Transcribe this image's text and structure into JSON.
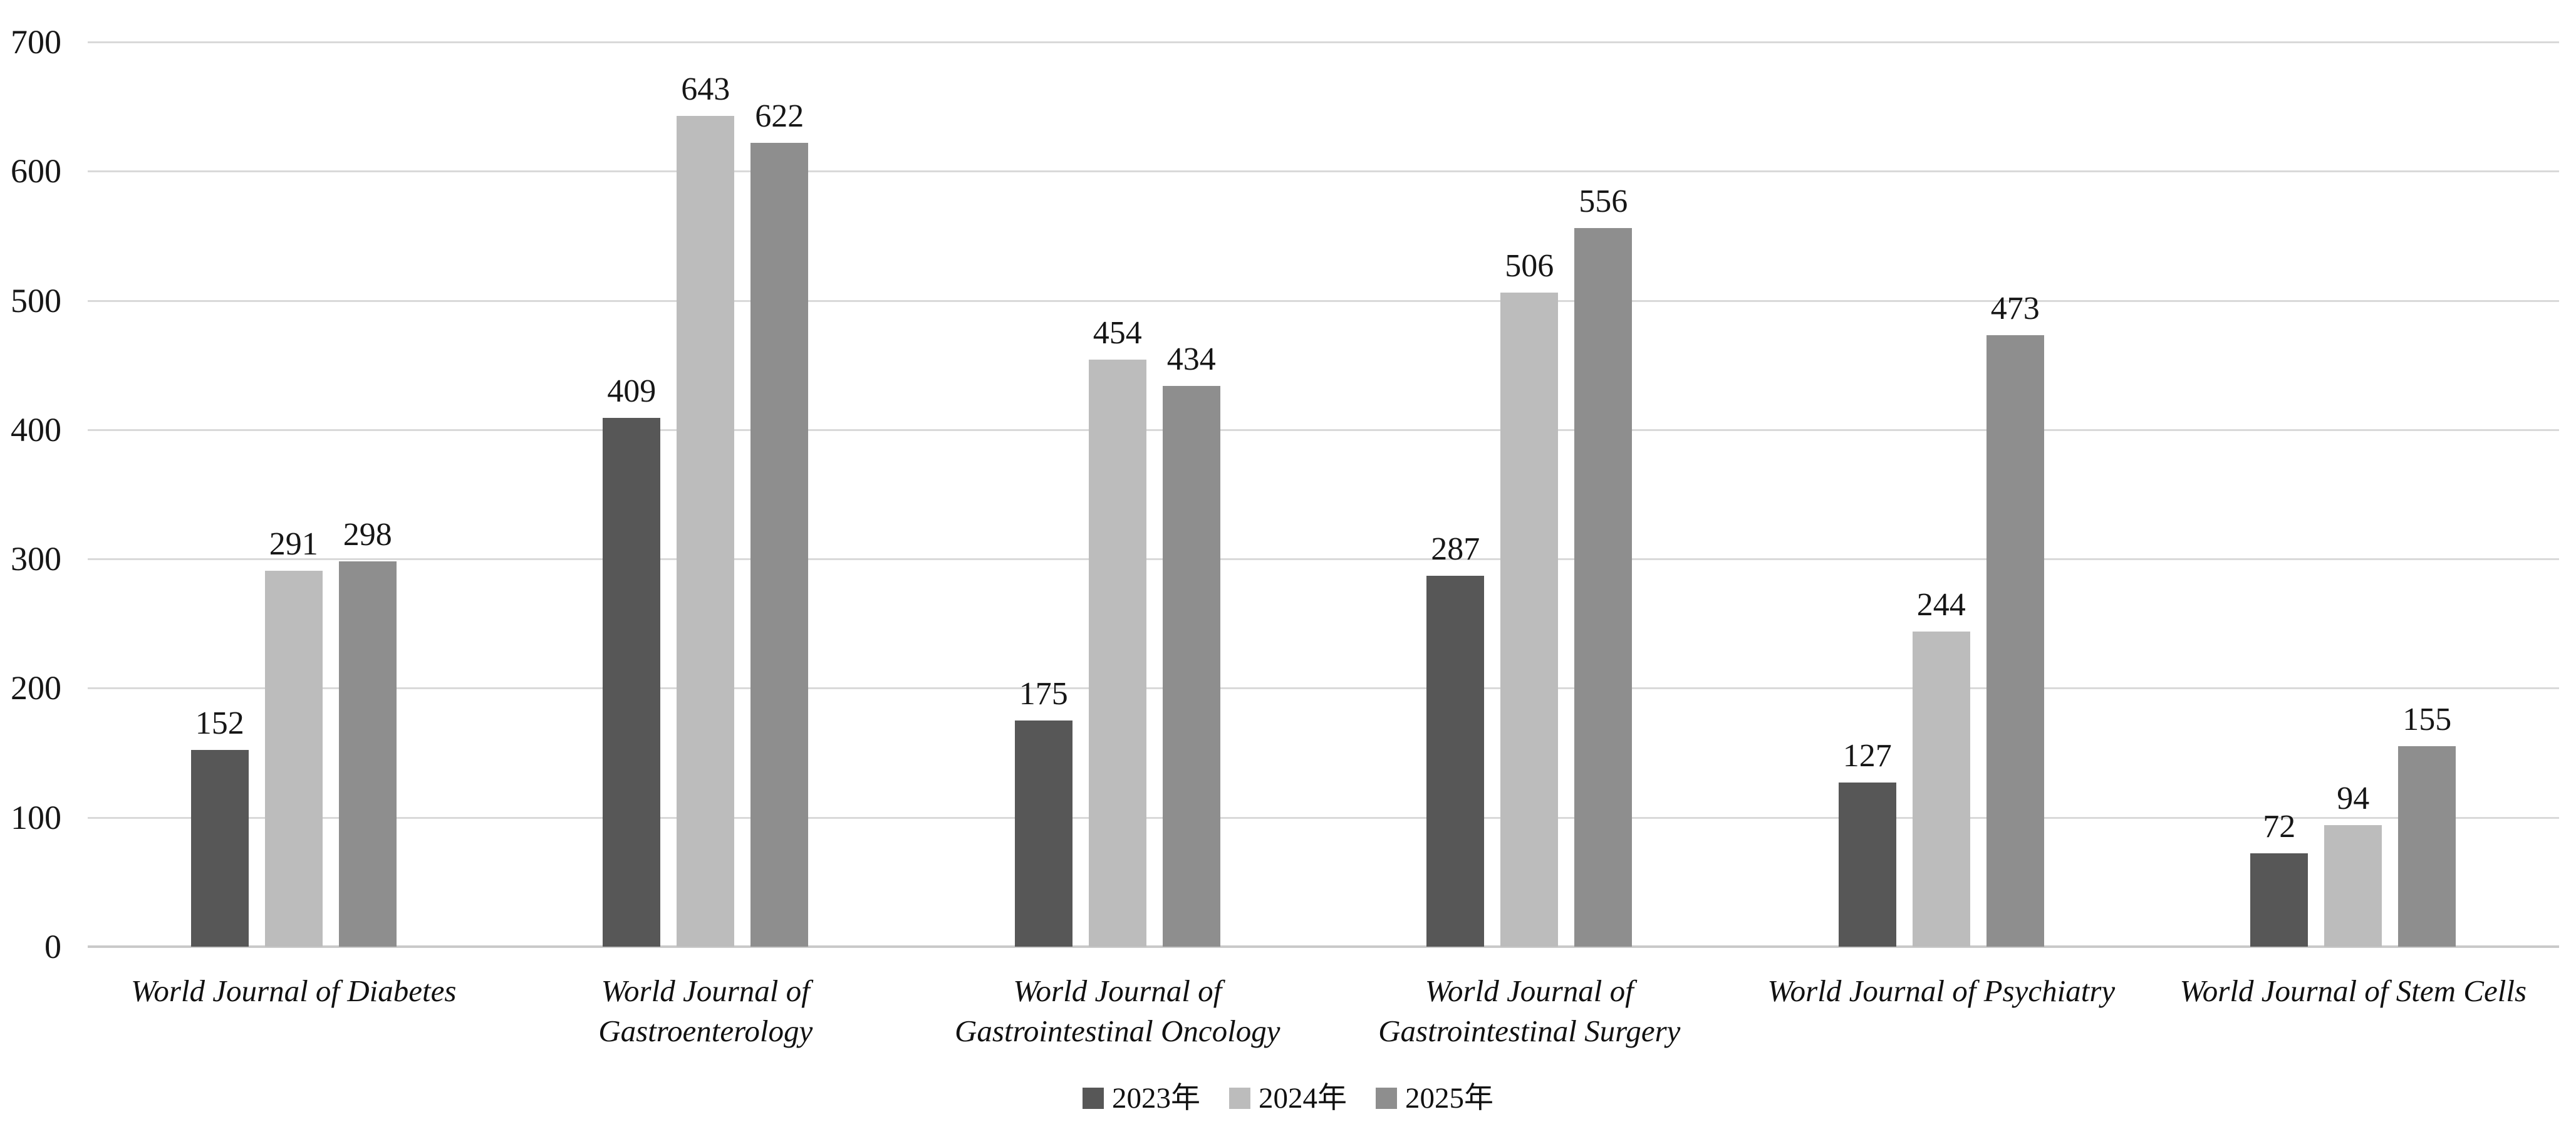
{
  "chart_data": {
    "type": "bar",
    "title": "",
    "categories": [
      {
        "label": "World Journal of Diabetes",
        "lines": [
          "World Journal of Diabetes"
        ]
      },
      {
        "label": "World Journal of Gastroenterology",
        "lines": [
          "World Journal of",
          "Gastroenterology"
        ]
      },
      {
        "label": "World Journal of Gastrointestinal Oncology",
        "lines": [
          "World Journal of",
          "Gastrointestinal Oncology"
        ]
      },
      {
        "label": "World Journal of Gastrointestinal Surgery",
        "lines": [
          "World Journal of",
          "Gastrointestinal Surgery"
        ]
      },
      {
        "label": "World Journal of Psychiatry",
        "lines": [
          "World Journal of Psychiatry"
        ]
      },
      {
        "label": "World Journal of Stem Cells",
        "lines": [
          "World Journal of Stem Cells"
        ]
      }
    ],
    "series": [
      {
        "name": "2023年",
        "color": "#575757",
        "values": [
          152,
          409,
          175,
          287,
          127,
          72
        ]
      },
      {
        "name": "2024年",
        "color": "#bcbcbc",
        "values": [
          291,
          643,
          454,
          506,
          244,
          94
        ]
      },
      {
        "name": "2025年",
        "color": "#8e8e8e",
        "values": [
          298,
          622,
          434,
          556,
          473,
          155
        ]
      }
    ],
    "y_axis": {
      "min": 0,
      "max": 700,
      "step": 100,
      "ticks": [
        0,
        100,
        200,
        300,
        400,
        500,
        600,
        700
      ]
    },
    "grid": true,
    "legend_position": "bottom",
    "data_labels": true,
    "styles": {
      "background": "#ffffff",
      "gridline_color": "#d9d9d9",
      "baseline_color": "#c9c9c9",
      "text_color": "#161616"
    }
  }
}
